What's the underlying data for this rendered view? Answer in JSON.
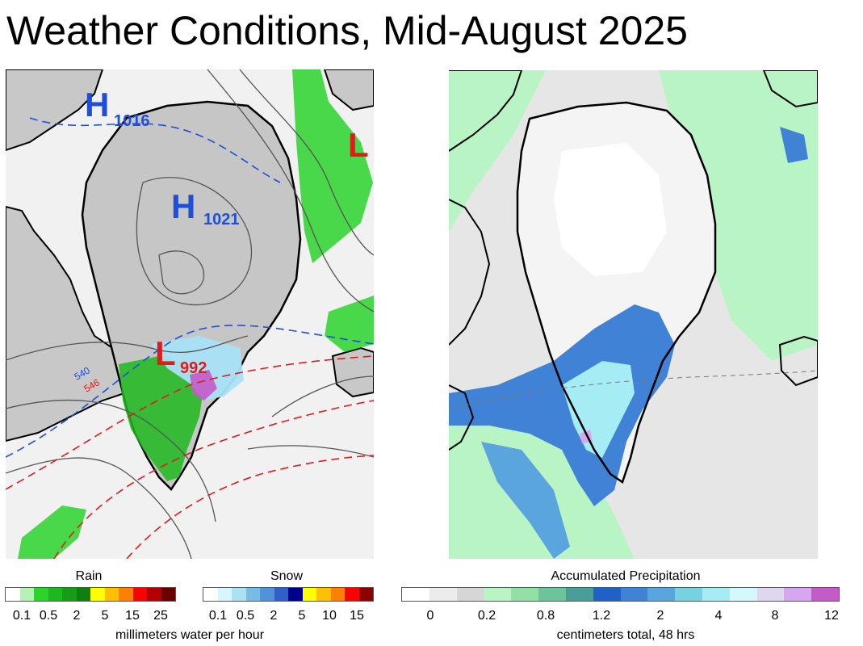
{
  "title": "Weather Conditions, Mid-August 2025",
  "left_map": {
    "pressure_systems": [
      {
        "letter": "H",
        "value": "1016",
        "color": "#1f4fd6"
      },
      {
        "letter": "H",
        "value": "1021",
        "color": "#1f4fd6"
      },
      {
        "letter": "L",
        "value": "992",
        "color": "#e31a1c"
      },
      {
        "letter": "L",
        "value": "",
        "color": "#e31a1c"
      }
    ],
    "contour_labels": [
      "540",
      "546"
    ]
  },
  "legends": {
    "rain": {
      "title": "Rain",
      "colors": [
        "#ffffff",
        "#b6f2b6",
        "#2bd32b",
        "#1db81d",
        "#169c16",
        "#0f7f0f",
        "#ffff00",
        "#ffc000",
        "#ff8000",
        "#ff0000",
        "#b20000",
        "#6a0000"
      ],
      "ticks": [
        "0.1",
        "0.5",
        "2",
        "5",
        "15",
        "25"
      ],
      "units": "millimeters water per hour"
    },
    "snow": {
      "title": "Snow",
      "colors": [
        "#ffffff",
        "#d8f6ff",
        "#a9e2f5",
        "#76bde6",
        "#4f94d9",
        "#2f5fc8",
        "#00008b",
        "#ffff00",
        "#ffc000",
        "#ff8000",
        "#ff0000",
        "#8b0000"
      ],
      "ticks": [
        "0.1",
        "0.5",
        "2",
        "5",
        "10",
        "15"
      ],
      "units": "millimeters water per hour"
    },
    "accumulated": {
      "title": "Accumulated Precipitation",
      "colors": [
        "#ffffff",
        "#ececec",
        "#d6d6d6",
        "#b9f5c4",
        "#92e0a6",
        "#6cc49a",
        "#4a9e98",
        "#2060c9",
        "#3f82d6",
        "#5aa5dd",
        "#78d0e3",
        "#a5ecf5",
        "#d4f8fb",
        "#dfd6f0",
        "#d8a6ee",
        "#c45bc8"
      ],
      "ticks": [
        "0",
        "0.2",
        "0.8",
        "1.2",
        "2",
        "4",
        "8",
        "12"
      ],
      "units": "centimeters total, 48 hrs"
    }
  }
}
